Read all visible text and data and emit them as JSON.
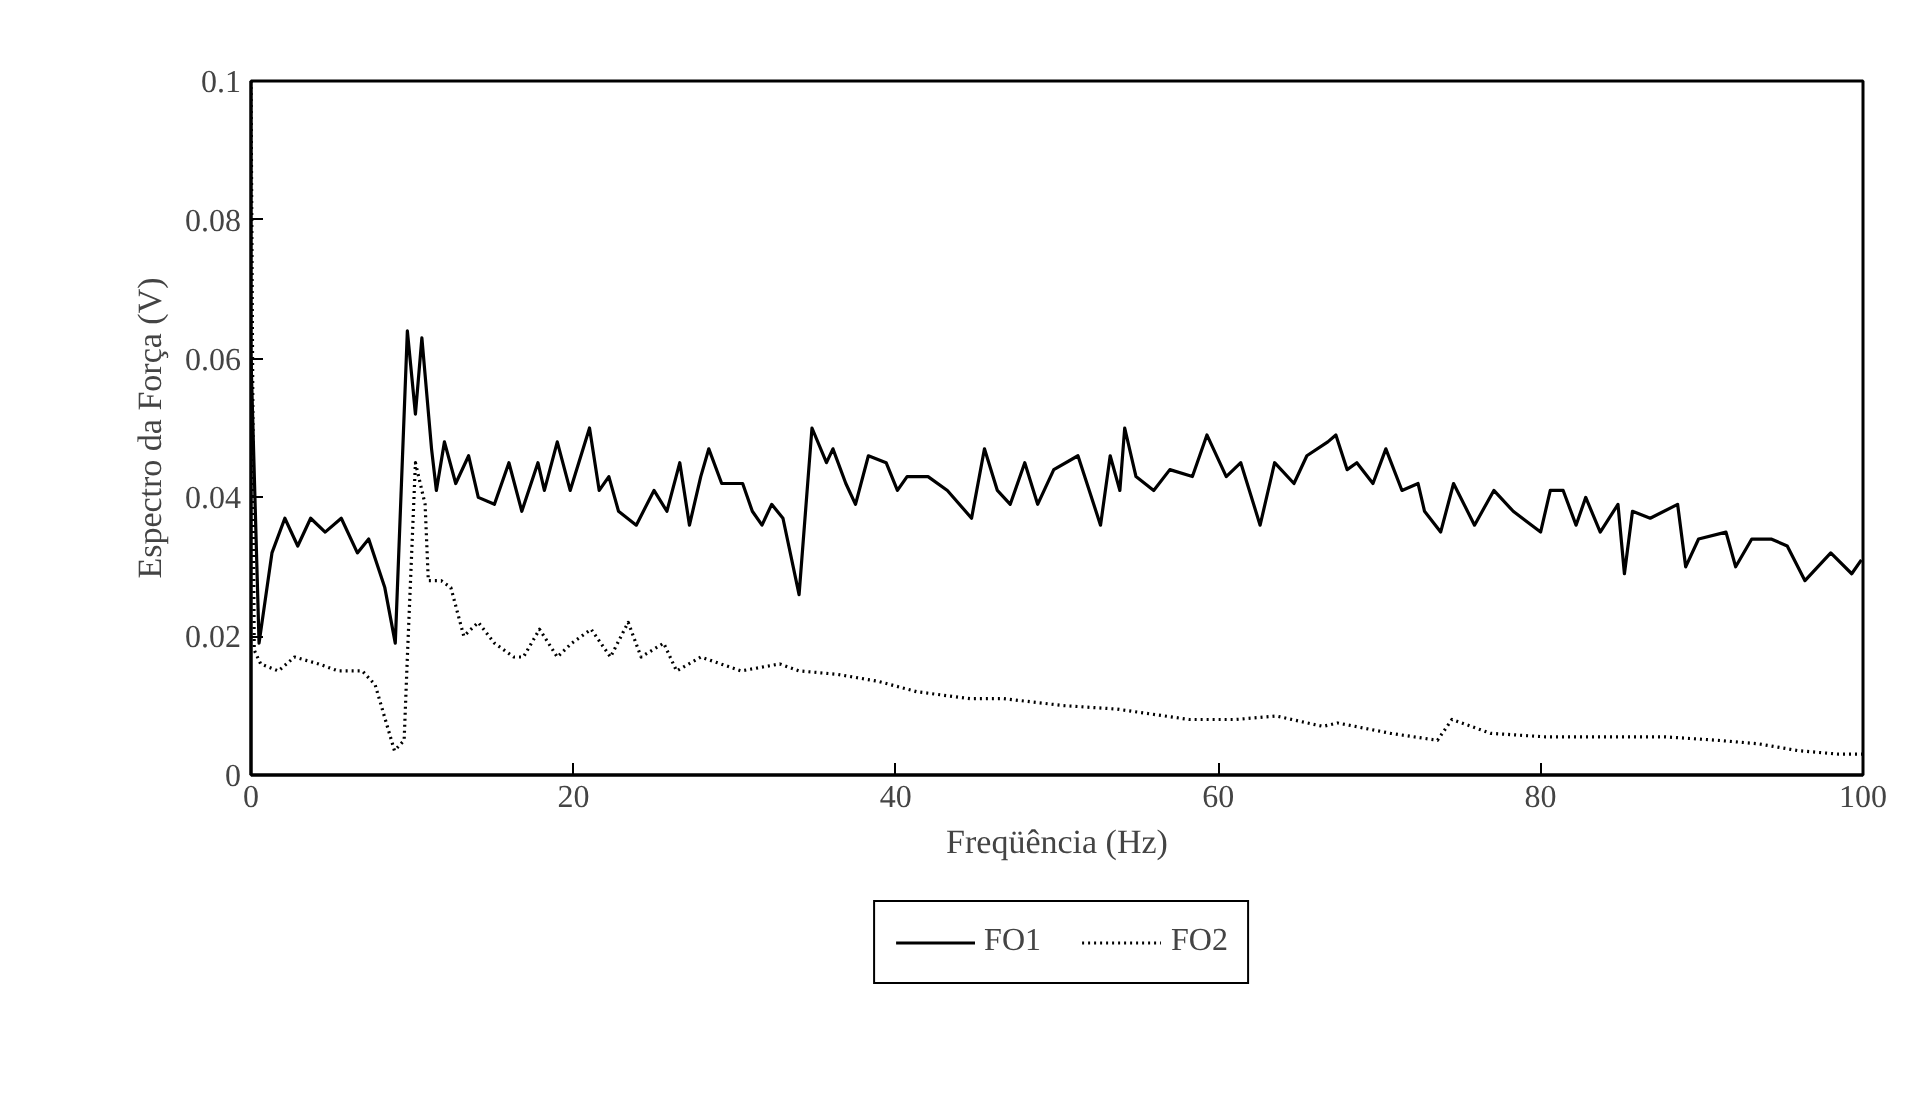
{
  "chart_data": {
    "type": "line",
    "xlabel": "Freqüência (Hz)",
    "ylabel": "Espectro da Força (V)",
    "xlim": [
      0,
      100
    ],
    "xticks": [
      0,
      20,
      40,
      60,
      80,
      100
    ],
    "ylim": [
      0,
      0.1
    ],
    "yticks": [
      0,
      0.02,
      0.04,
      0.06,
      0.08,
      0.1
    ],
    "grid": false,
    "legend": "bottom",
    "series": [
      {
        "name": "FO1",
        "color": "#000000",
        "line_style": "solid",
        "x": [
          0,
          0.5,
          1.3,
          2.1,
          2.9,
          3.7,
          4.6,
          5.6,
          6.6,
          7.3,
          8.3,
          8.95,
          9.7,
          10.2,
          10.6,
          11.2,
          11.5,
          12.0,
          12.7,
          13.5,
          14.1,
          15.1,
          16.0,
          16.8,
          17.8,
          18.2,
          19.0,
          19.8,
          21.0,
          21.6,
          22.2,
          22.8,
          23.9,
          25.0,
          25.8,
          26.6,
          27.2,
          27.9,
          28.4,
          29.2,
          30.5,
          31.1,
          31.7,
          32.3,
          33.0,
          34.0,
          34.8,
          35.7,
          36.1,
          36.9,
          37.5,
          38.3,
          39.4,
          40.1,
          40.7,
          42.0,
          43.2,
          44.7,
          45.5,
          46.3,
          47.1,
          48.0,
          48.8,
          49.8,
          51.3,
          52.7,
          53.3,
          53.9,
          54.2,
          54.9,
          56.0,
          57.0,
          58.4,
          59.3,
          60.5,
          61.4,
          62.6,
          63.5,
          64.7,
          65.5,
          66.8,
          67.3,
          68.0,
          68.6,
          69.6,
          70.4,
          71.4,
          72.4,
          72.8,
          73.8,
          74.6,
          75.9,
          77.1,
          78.3,
          80.0,
          80.6,
          81.4,
          82.2,
          82.8,
          83.7,
          84.8,
          85.2,
          85.7,
          86.8,
          88.5,
          89.0,
          89.8,
          91.5,
          92.1,
          93.1,
          94.3,
          95.3,
          96.4,
          98.0,
          99.3,
          99.9
        ],
        "values": [
          0.06,
          0.019,
          0.032,
          0.037,
          0.033,
          0.037,
          0.035,
          0.037,
          0.032,
          0.034,
          0.027,
          0.019,
          0.064,
          0.052,
          0.063,
          0.047,
          0.041,
          0.048,
          0.042,
          0.046,
          0.04,
          0.039,
          0.045,
          0.038,
          0.045,
          0.041,
          0.048,
          0.041,
          0.05,
          0.041,
          0.043,
          0.038,
          0.036,
          0.041,
          0.038,
          0.045,
          0.036,
          0.043,
          0.047,
          0.042,
          0.042,
          0.038,
          0.036,
          0.039,
          0.037,
          0.026,
          0.05,
          0.045,
          0.047,
          0.042,
          0.039,
          0.046,
          0.045,
          0.041,
          0.043,
          0.043,
          0.041,
          0.037,
          0.047,
          0.041,
          0.039,
          0.045,
          0.039,
          0.044,
          0.046,
          0.036,
          0.046,
          0.041,
          0.05,
          0.043,
          0.041,
          0.044,
          0.043,
          0.049,
          0.043,
          0.045,
          0.036,
          0.045,
          0.042,
          0.046,
          0.048,
          0.049,
          0.044,
          0.045,
          0.042,
          0.047,
          0.041,
          0.042,
          0.038,
          0.035,
          0.042,
          0.036,
          0.041,
          0.038,
          0.035,
          0.041,
          0.041,
          0.036,
          0.04,
          0.035,
          0.039,
          0.029,
          0.038,
          0.037,
          0.039,
          0.03,
          0.034,
          0.035,
          0.03,
          0.034,
          0.034,
          0.033,
          0.028,
          0.032,
          0.029,
          0.031
        ]
      },
      {
        "name": "FO2",
        "color": "#000000",
        "line_style": "dotted",
        "x": [
          0,
          0.2,
          0.6,
          1.7,
          2.7,
          4.2,
          5.4,
          6.9,
          7.7,
          8.9,
          9.5,
          9.7,
          10.2,
          10.8,
          11.0,
          11.8,
          12.4,
          13.2,
          14.1,
          15.1,
          16.3,
          16.9,
          17.9,
          19.0,
          19.9,
          21.1,
          22.3,
          23.4,
          24.2,
          25.6,
          26.4,
          27.9,
          30.4,
          32.8,
          34.0,
          36.4,
          38.9,
          41.3,
          44.6,
          46.7,
          50.4,
          53.7,
          58.2,
          61.1,
          63.6,
          66.5,
          67.4,
          70.7,
          73.6,
          74.5,
          76.9,
          80.3,
          84.4,
          87.7,
          91.0,
          93.5,
          96.0,
          98.5,
          100
        ],
        "values": [
          0.1,
          0.018,
          0.016,
          0.015,
          0.017,
          0.016,
          0.015,
          0.015,
          0.013,
          0.0035,
          0.005,
          0.017,
          0.045,
          0.039,
          0.028,
          0.028,
          0.027,
          0.02,
          0.022,
          0.019,
          0.017,
          0.017,
          0.021,
          0.017,
          0.019,
          0.021,
          0.017,
          0.022,
          0.017,
          0.019,
          0.015,
          0.017,
          0.015,
          0.016,
          0.015,
          0.0145,
          0.0135,
          0.012,
          0.011,
          0.011,
          0.01,
          0.0095,
          0.008,
          0.008,
          0.0085,
          0.007,
          0.0075,
          0.006,
          0.005,
          0.008,
          0.006,
          0.0055,
          0.0055,
          0.0055,
          0.005,
          0.0045,
          0.0035,
          0.003,
          0.003
        ]
      }
    ]
  }
}
